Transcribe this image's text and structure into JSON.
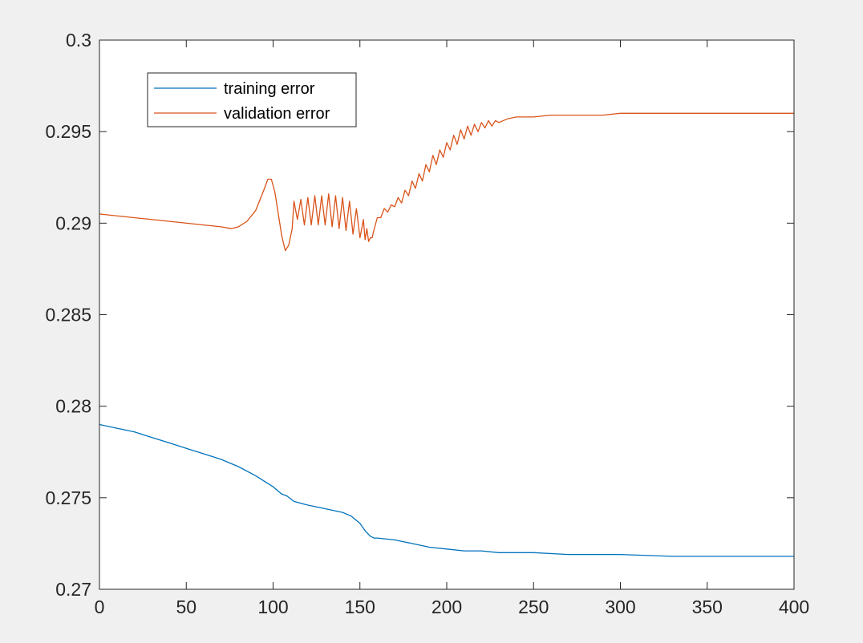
{
  "chart_data": {
    "type": "line",
    "title": "",
    "xlabel": "",
    "ylabel": "",
    "xlim": [
      0,
      400
    ],
    "ylim": [
      0.27,
      0.3
    ],
    "xticks": [
      0,
      50,
      100,
      150,
      200,
      250,
      300,
      350,
      400
    ],
    "xtick_labels": [
      "0",
      "50",
      "100",
      "150",
      "200",
      "250",
      "300",
      "350",
      "400"
    ],
    "yticks": [
      0.27,
      0.275,
      0.28,
      0.285,
      0.29,
      0.295,
      0.3
    ],
    "ytick_labels": [
      "0.27",
      "0.275",
      "0.28",
      "0.285",
      "0.29",
      "0.295",
      "0.3"
    ],
    "grid": false,
    "legend_position": "top-left",
    "series": [
      {
        "name": "training error",
        "color": "#0072BD",
        "x": [
          0,
          10,
          20,
          30,
          40,
          50,
          60,
          70,
          80,
          90,
          95,
          100,
          105,
          108,
          112,
          120,
          130,
          140,
          145,
          150,
          153,
          156,
          158,
          160,
          170,
          180,
          190,
          200,
          210,
          220,
          230,
          240,
          250,
          270,
          300,
          330,
          360,
          400
        ],
        "y": [
          0.279,
          0.2788,
          0.2786,
          0.2783,
          0.278,
          0.2777,
          0.2774,
          0.2771,
          0.2767,
          0.2762,
          0.2759,
          0.2756,
          0.2752,
          0.2751,
          0.2748,
          0.2746,
          0.2744,
          0.2742,
          0.274,
          0.2736,
          0.2732,
          0.2729,
          0.2728,
          0.2728,
          0.2727,
          0.2725,
          0.2723,
          0.2722,
          0.2721,
          0.2721,
          0.272,
          0.272,
          0.272,
          0.2719,
          0.2719,
          0.2718,
          0.2718,
          0.2718
        ]
      },
      {
        "name": "validation error",
        "color": "#D95319",
        "x": [
          0,
          20,
          40,
          60,
          70,
          76,
          80,
          85,
          90,
          93,
          95,
          97,
          99,
          101,
          103,
          105,
          107,
          109,
          111,
          112,
          114,
          116,
          118,
          120,
          122,
          124,
          126,
          128,
          130,
          132,
          134,
          136,
          138,
          140,
          142,
          144,
          146,
          148,
          150,
          152,
          153,
          154,
          155,
          156,
          157,
          158,
          160,
          162,
          164,
          166,
          168,
          170,
          172,
          174,
          176,
          178,
          180,
          182,
          184,
          186,
          188,
          190,
          192,
          194,
          196,
          198,
          200,
          202,
          204,
          206,
          208,
          210,
          212,
          214,
          216,
          218,
          220,
          222,
          224,
          226,
          228,
          230,
          235,
          240,
          250,
          260,
          270,
          280,
          290,
          300,
          310,
          320,
          340,
          360,
          380,
          400
        ],
        "y": [
          0.2905,
          0.2903,
          0.2901,
          0.2899,
          0.2898,
          0.2897,
          0.2898,
          0.2901,
          0.2907,
          0.2914,
          0.2919,
          0.2924,
          0.2924,
          0.2917,
          0.2905,
          0.2893,
          0.2885,
          0.2888,
          0.2897,
          0.2912,
          0.2902,
          0.2913,
          0.2899,
          0.2914,
          0.2899,
          0.2915,
          0.2899,
          0.2915,
          0.2899,
          0.2916,
          0.2898,
          0.2915,
          0.2897,
          0.2914,
          0.2896,
          0.2912,
          0.2894,
          0.2908,
          0.2892,
          0.2902,
          0.2891,
          0.2897,
          0.289,
          0.2892,
          0.2892,
          0.2896,
          0.2903,
          0.2903,
          0.2908,
          0.2906,
          0.291,
          0.2909,
          0.2914,
          0.2911,
          0.2918,
          0.2915,
          0.2923,
          0.2919,
          0.2927,
          0.2923,
          0.2932,
          0.2928,
          0.2937,
          0.2932,
          0.294,
          0.2936,
          0.2944,
          0.294,
          0.2948,
          0.2943,
          0.2951,
          0.2946,
          0.2953,
          0.2948,
          0.2954,
          0.295,
          0.2955,
          0.2952,
          0.2956,
          0.2953,
          0.2956,
          0.2955,
          0.2957,
          0.2958,
          0.2958,
          0.2959,
          0.2959,
          0.2959,
          0.2959,
          0.296,
          0.296,
          0.296,
          0.296,
          0.296,
          0.296,
          0.296
        ]
      }
    ]
  }
}
